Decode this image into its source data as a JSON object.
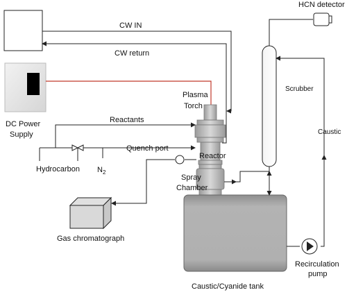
{
  "labels": {
    "hcn_detector": "HCN detector",
    "cw_in": "CW IN",
    "cw_return": "CW return",
    "scrubber": "Scrubber",
    "plasma": "Plasma",
    "torch": "Torch",
    "dc_power_line1": "DC Power",
    "dc_power_line2": "Supply",
    "reactants": "Reactants",
    "caustic": "Caustic",
    "quench_port": "Quench port",
    "reactor": "Reactor",
    "hydrocarbon": "Hydrocarbon",
    "n2_main": "N",
    "n2_sub": "2",
    "spray_line1": "Spray",
    "spray_line2": "Chamber",
    "gas_chromatograph": "Gas chromatograph",
    "recirc_line1": "Recirculation",
    "recirc_line2": "pump",
    "tank": "Caustic/Cyanide tank"
  },
  "colors": {
    "power_line": "#c0392b",
    "line": "#222222",
    "equipment_gray": "#b8b8b8",
    "tank_gray": "#a9a9a9"
  }
}
